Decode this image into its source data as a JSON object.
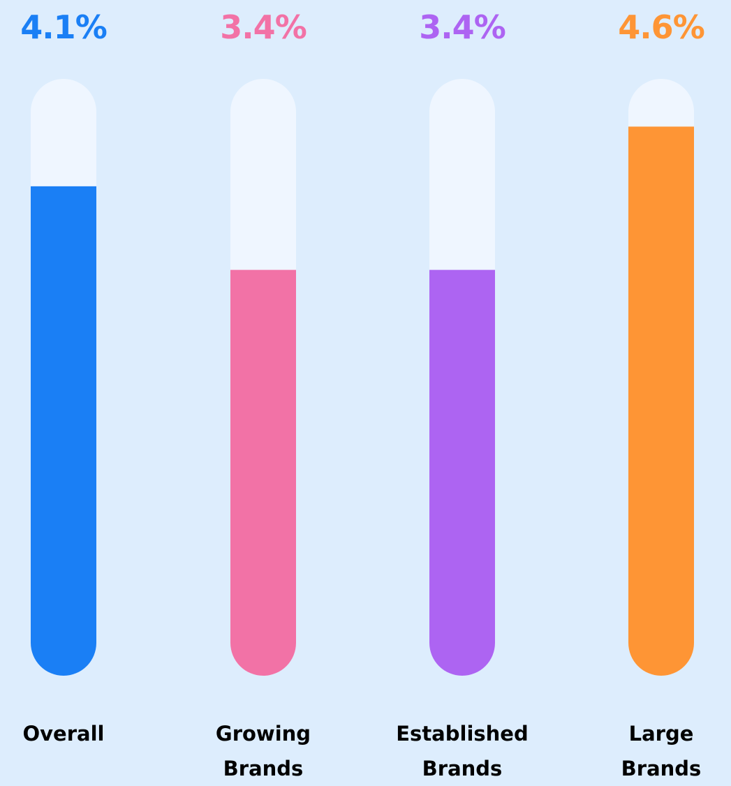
{
  "chart_data": {
    "type": "bar",
    "categories": [
      "Overall",
      "Growing Brands",
      "Established Brands",
      "Large Brands"
    ],
    "values": [
      4.1,
      3.4,
      3.4,
      4.6
    ],
    "value_labels": [
      "4.1%",
      "3.4%",
      "3.4%",
      "4.6%"
    ],
    "colors": [
      "#1a7ff5",
      "#f272a6",
      "#ad64f2",
      "#fe9535"
    ],
    "ylim": [
      0,
      5
    ]
  }
}
